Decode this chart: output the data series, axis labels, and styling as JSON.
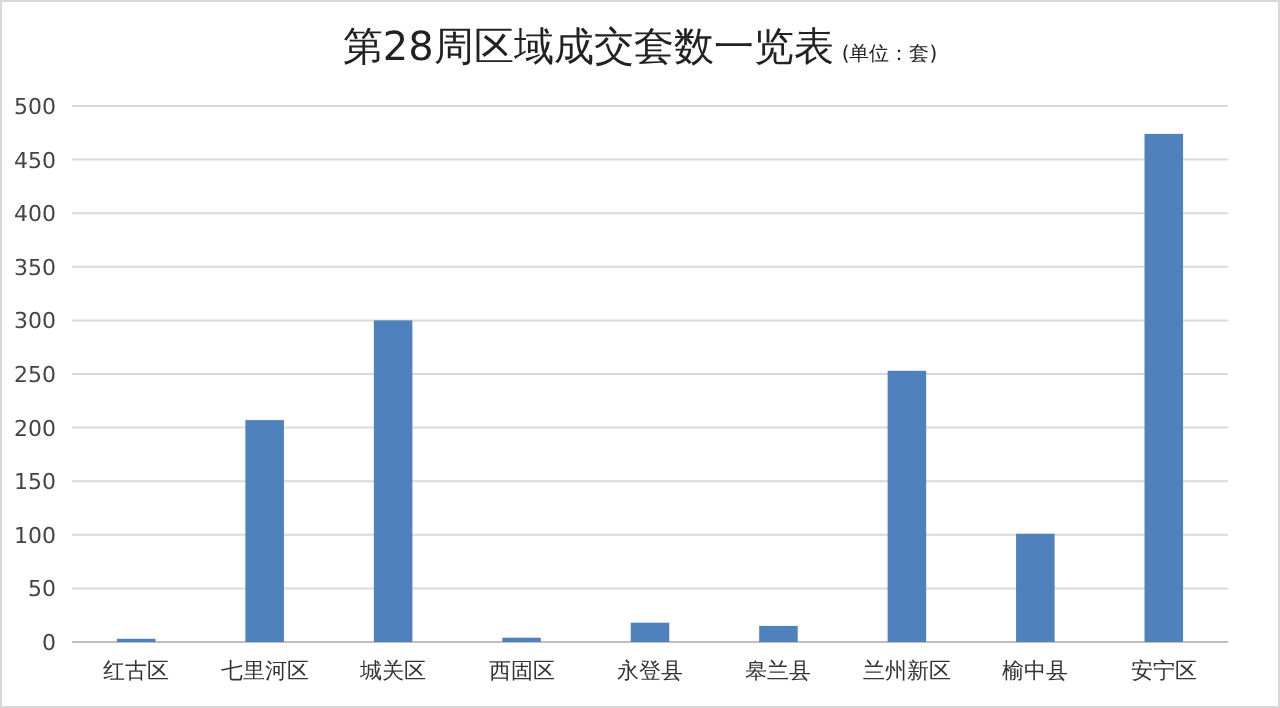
{
  "chart_data": {
    "type": "bar",
    "title": "第28周区域成交套数一览表",
    "subtitle": "(单位：套)",
    "categories": [
      "红古区",
      "七里河区",
      "城关区",
      "西固区",
      "永登县",
      "皋兰县",
      "兰州新区",
      "榆中县",
      "安宁区"
    ],
    "values": [
      3,
      207,
      300,
      4,
      18,
      15,
      253,
      101,
      474
    ],
    "color": "#4f81bd",
    "ylim": [
      0,
      500
    ],
    "yticks": [
      0,
      50,
      100,
      150,
      200,
      250,
      300,
      350,
      400,
      450,
      500
    ],
    "grid": "y"
  }
}
